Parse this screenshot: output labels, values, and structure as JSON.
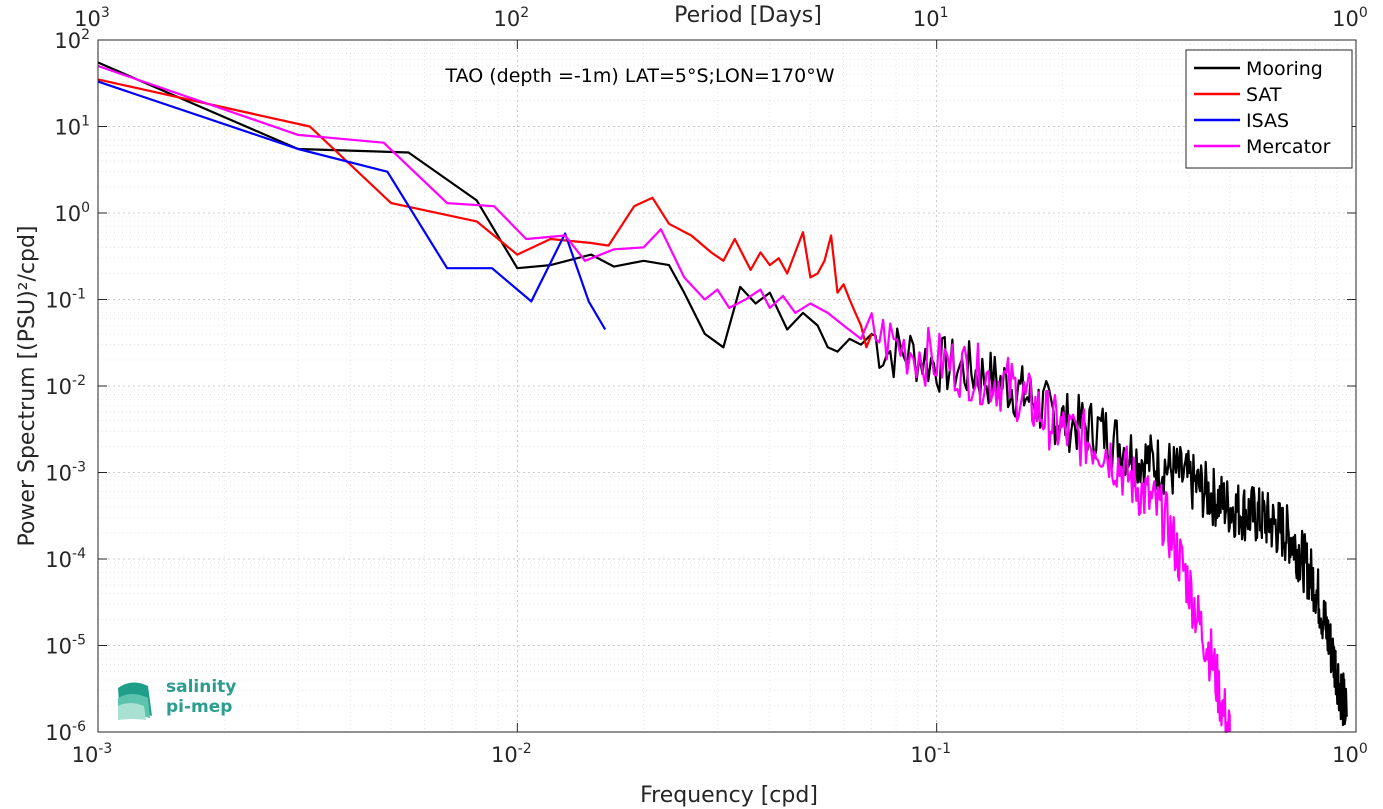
{
  "chart_data": {
    "type": "line",
    "title": "TAO (depth =-1m) LAT=5°S;LON=170°W",
    "xlabel": "Frequency [cpd]",
    "ylabel": "Power Spectrum [(PSU)²/cpd]",
    "top_xlabel": "Period [Days]",
    "x_scale": "log",
    "y_scale": "log",
    "xlim": [
      0.001,
      1
    ],
    "ylim": [
      1e-06,
      100
    ],
    "grid": true,
    "legend_position": "top-right",
    "x_ticks": [
      {
        "base": "10",
        "exp": "-3"
      },
      {
        "base": "10",
        "exp": "-2"
      },
      {
        "base": "10",
        "exp": "-1"
      },
      {
        "base": "10",
        "exp": "0"
      }
    ],
    "top_ticks": [
      {
        "base": "10",
        "exp": "3"
      },
      {
        "base": "10",
        "exp": "2"
      },
      {
        "base": "10",
        "exp": "1"
      },
      {
        "base": "10",
        "exp": "0"
      }
    ],
    "y_ticks": [
      {
        "base": "10",
        "exp": "2"
      },
      {
        "base": "10",
        "exp": "1"
      },
      {
        "base": "10",
        "exp": "0"
      },
      {
        "base": "10",
        "exp": "-1"
      },
      {
        "base": "10",
        "exp": "-2"
      },
      {
        "base": "10",
        "exp": "-3"
      },
      {
        "base": "10",
        "exp": "-4"
      },
      {
        "base": "10",
        "exp": "-5"
      },
      {
        "base": "10",
        "exp": "-6"
      }
    ],
    "series": [
      {
        "name": "Mooring",
        "color": "#000000",
        "noisy_tail": true,
        "x": [
          0.001,
          0.003,
          0.0055,
          0.008,
          0.01,
          0.012,
          0.015,
          0.017,
          0.02,
          0.023,
          0.025,
          0.028,
          0.031,
          0.034,
          0.037,
          0.04,
          0.044,
          0.048,
          0.052,
          0.055,
          0.058,
          0.062,
          0.066,
          0.07,
          0.075,
          0.085,
          0.1,
          0.12,
          0.15,
          0.2,
          0.25,
          0.3,
          0.35,
          0.4,
          0.5,
          0.6,
          0.7,
          0.8,
          0.85,
          0.9,
          0.95
        ],
        "y": [
          55,
          5.5,
          5,
          1.4,
          0.23,
          0.25,
          0.33,
          0.24,
          0.28,
          0.25,
          0.12,
          0.04,
          0.028,
          0.14,
          0.09,
          0.12,
          0.045,
          0.07,
          0.05,
          0.028,
          0.025,
          0.035,
          0.03,
          0.04,
          0.025,
          0.025,
          0.018,
          0.015,
          0.01,
          0.004,
          0.003,
          0.0015,
          0.0012,
          0.0008,
          0.0004,
          0.0003,
          0.00018,
          5e-05,
          1.5e-05,
          5e-06,
          1.5e-06
        ]
      },
      {
        "name": "SAT",
        "color": "#ff0000",
        "noisy_tail": false,
        "x": [
          0.001,
          0.0032,
          0.005,
          0.008,
          0.01,
          0.012,
          0.015,
          0.0165,
          0.019,
          0.021,
          0.023,
          0.026,
          0.029,
          0.031,
          0.033,
          0.036,
          0.038,
          0.04,
          0.042,
          0.044,
          0.046,
          0.048,
          0.05,
          0.052,
          0.054,
          0.056,
          0.058,
          0.06,
          0.062,
          0.064,
          0.066,
          0.068,
          0.07
        ],
        "y": [
          35,
          10,
          1.3,
          0.8,
          0.33,
          0.5,
          0.45,
          0.42,
          1.2,
          1.5,
          0.75,
          0.55,
          0.35,
          0.28,
          0.5,
          0.22,
          0.35,
          0.25,
          0.3,
          0.2,
          0.35,
          0.6,
          0.18,
          0.2,
          0.28,
          0.55,
          0.12,
          0.15,
          0.1,
          0.07,
          0.05,
          0.028,
          0.04
        ]
      },
      {
        "name": "ISAS",
        "color": "#0000ff",
        "noisy_tail": false,
        "x": [
          0.001,
          0.003,
          0.0049,
          0.0068,
          0.0087,
          0.0108,
          0.013,
          0.0148,
          0.0162
        ],
        "y": [
          33,
          5.5,
          3,
          0.23,
          0.23,
          0.095,
          0.58,
          0.095,
          0.045
        ]
      },
      {
        "name": "Mercator",
        "color": "#ff00ff",
        "noisy_tail": true,
        "x": [
          0.001,
          0.003,
          0.0048,
          0.0068,
          0.0088,
          0.0105,
          0.013,
          0.0145,
          0.017,
          0.02,
          0.022,
          0.025,
          0.028,
          0.03,
          0.032,
          0.035,
          0.038,
          0.04,
          0.043,
          0.046,
          0.05,
          0.055,
          0.06,
          0.066,
          0.072,
          0.08,
          0.1,
          0.12,
          0.15,
          0.2,
          0.25,
          0.3,
          0.35,
          0.4,
          0.42,
          0.45,
          0.48,
          0.5
        ],
        "y": [
          50,
          8,
          6.5,
          1.3,
          1.2,
          0.5,
          0.55,
          0.28,
          0.38,
          0.4,
          0.65,
          0.18,
          0.1,
          0.13,
          0.08,
          0.1,
          0.13,
          0.08,
          0.11,
          0.07,
          0.09,
          0.07,
          0.05,
          0.035,
          0.04,
          0.03,
          0.02,
          0.015,
          0.01,
          0.003,
          0.002,
          0.0007,
          0.0003,
          5e-05,
          2e-05,
          8e-06,
          2e-06,
          1e-06
        ]
      }
    ]
  },
  "logo": {
    "line1": "salinity",
    "line2": "pi-mep"
  }
}
